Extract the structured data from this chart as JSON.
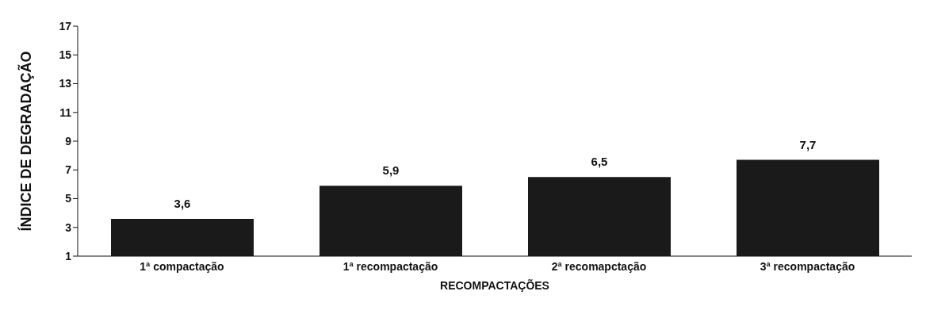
{
  "chart_data": {
    "type": "bar",
    "xlabel": "RECOMPACTAÇÕES",
    "ylabel": "ÍNDICE DE DEGRADAÇÃO",
    "categories": [
      "1ª compactação",
      "1ª recompactação",
      "2ª recomapctação",
      "3ª recompactação"
    ],
    "values": [
      3.6,
      5.9,
      6.5,
      7.7
    ],
    "value_labels": [
      "3,6",
      "5,9",
      "6,5",
      "7,7"
    ],
    "color": "#1a1a1a",
    "ylim": [
      1,
      17
    ],
    "yticks": [
      1,
      3,
      5,
      7,
      9,
      11,
      13,
      15,
      17
    ],
    "grid": false
  }
}
